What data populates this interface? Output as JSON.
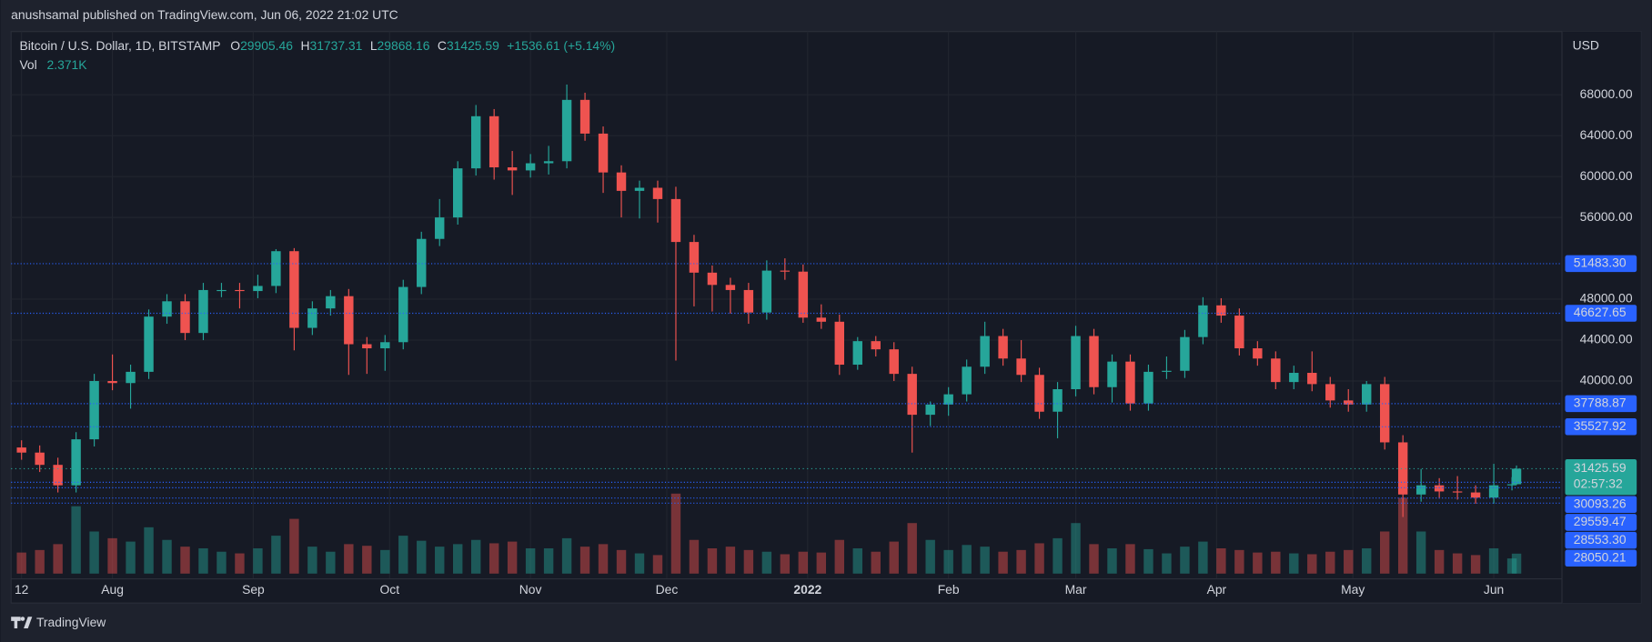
{
  "header": {
    "publisher": "anushsamal published on TradingView.com, Jun 06, 2022 21:02 UTC",
    "change": "+1536.61 (+5.14%)",
    "countdown": "02:57:32",
    "footer": "TradingView"
  },
  "chart_data": {
    "type": "candlestick",
    "title": "Bitcoin / U.S. Dollar, 1D, BITSTAMP",
    "currency": "USD",
    "ohlc_labels": [
      "O",
      "H",
      "L",
      "C"
    ],
    "volume_name": "Vol",
    "volume_label": "2.371K",
    "up_color": "#26a69a",
    "down_color": "#ef5350",
    "level_color": "#2962ff",
    "x": [
      0,
      4,
      8,
      12,
      16,
      20,
      24,
      28,
      32,
      36,
      40,
      44,
      48,
      52,
      56,
      60,
      64,
      68,
      72,
      76,
      80,
      84,
      88,
      92,
      96,
      100,
      104,
      108,
      112,
      116,
      120,
      124,
      128,
      132,
      136,
      140,
      144,
      148,
      152,
      156,
      160,
      164,
      168,
      172,
      176,
      180,
      184,
      188,
      192,
      196,
      200,
      204,
      208,
      212,
      216,
      220,
      224,
      228,
      232,
      236,
      240,
      244,
      248,
      252,
      256,
      260,
      264,
      268,
      272,
      276,
      280,
      284,
      288,
      292,
      296,
      300,
      304,
      308,
      312,
      316,
      320,
      324,
      328,
      329
    ],
    "open": [
      33500,
      33000,
      31800,
      29800,
      34300,
      40000,
      39800,
      40900,
      46300,
      47800,
      44700,
      48900,
      48900,
      48800,
      49300,
      52700,
      45200,
      47100,
      48300,
      43600,
      43200,
      43800,
      49200,
      53900,
      56000,
      60800,
      65900,
      60900,
      60600,
      61300,
      61500,
      67500,
      64200,
      60400,
      58600,
      58900,
      57800,
      53600,
      50600,
      49400,
      48900,
      46700,
      50800,
      50700,
      46200,
      45800,
      41600,
      43900,
      43100,
      40700,
      36700,
      37700,
      38700,
      41400,
      44400,
      42200,
      40600,
      37000,
      39200,
      44400,
      39400,
      41900,
      37800,
      40900,
      41000,
      44300,
      47400,
      46400,
      43200,
      42200,
      39900,
      40800,
      39700,
      38100,
      37700,
      39700,
      34000,
      28900,
      29800,
      29200,
      29100,
      28600,
      29800,
      29905.46
    ],
    "high": [
      34200,
      33700,
      32500,
      35000,
      40700,
      42600,
      41600,
      47000,
      48500,
      48500,
      49600,
      49600,
      49600,
      50400,
      52900,
      53000,
      47800,
      48900,
      49000,
      44300,
      44500,
      49900,
      54600,
      57800,
      61500,
      67000,
      66600,
      62500,
      62200,
      63000,
      69000,
      68200,
      64900,
      61100,
      59600,
      59600,
      59000,
      54300,
      51300,
      50100,
      49600,
      51800,
      52000,
      51400,
      47500,
      46500,
      44300,
      44400,
      43800,
      41400,
      38000,
      39400,
      42100,
      45800,
      45100,
      44000,
      41300,
      39900,
      45400,
      45100,
      42600,
      42600,
      41600,
      42400,
      45000,
      48200,
      48100,
      47100,
      43900,
      42900,
      41500,
      42900,
      40400,
      39200,
      40000,
      40400,
      34700,
      31400,
      30500,
      30700,
      29800,
      31900,
      30600,
      31737.31
    ],
    "low": [
      32300,
      31100,
      29100,
      29100,
      33600,
      39100,
      37300,
      40200,
      45600,
      44000,
      44000,
      48200,
      47100,
      48100,
      48600,
      43000,
      44500,
      46400,
      40600,
      40700,
      41000,
      43100,
      48500,
      53200,
      55300,
      60100,
      59700,
      58200,
      59900,
      60200,
      60800,
      63500,
      58400,
      56000,
      55900,
      55500,
      42000,
      47300,
      46800,
      46600,
      45600,
      46000,
      49900,
      45700,
      45100,
      40600,
      41100,
      42400,
      40000,
      33000,
      35600,
      36600,
      38000,
      40700,
      41500,
      39900,
      36300,
      34400,
      38500,
      38700,
      37900,
      37100,
      37100,
      40200,
      40300,
      43600,
      45700,
      42500,
      41500,
      39200,
      39200,
      39000,
      37400,
      37000,
      37000,
      33300,
      26700,
      28200,
      28500,
      28400,
      28000,
      28000,
      29300,
      29868.16
    ],
    "close": [
      33000,
      31800,
      29800,
      34300,
      40000,
      39800,
      40900,
      46300,
      47800,
      44700,
      48900,
      48900,
      48800,
      49300,
      52700,
      45200,
      47100,
      48300,
      43600,
      43200,
      43800,
      49200,
      53900,
      56000,
      60800,
      65900,
      60900,
      60600,
      61300,
      61500,
      67500,
      64200,
      60400,
      58600,
      58900,
      57800,
      53600,
      50600,
      49400,
      48900,
      46700,
      50800,
      50700,
      46200,
      45800,
      41600,
      43900,
      43100,
      40700,
      36700,
      37700,
      38700,
      41400,
      44400,
      42200,
      40600,
      37000,
      39200,
      44400,
      39400,
      41900,
      37800,
      40900,
      41000,
      44300,
      47400,
      46400,
      43200,
      42200,
      39900,
      40800,
      39700,
      38100,
      37700,
      39700,
      34000,
      28900,
      29800,
      29200,
      29100,
      28600,
      29800,
      29900,
      31425.59
    ],
    "volume": [
      2.5,
      2.8,
      3.5,
      8.0,
      5.0,
      4.2,
      3.8,
      5.5,
      4.0,
      3.2,
      3.0,
      2.6,
      2.4,
      3.0,
      4.5,
      6.5,
      3.2,
      2.6,
      3.5,
      3.3,
      2.8,
      4.5,
      3.9,
      3.2,
      3.5,
      4.0,
      3.6,
      3.8,
      3.0,
      3.0,
      4.2,
      3.2,
      3.5,
      2.8,
      2.4,
      2.2,
      9.5,
      4.0,
      3.0,
      3.2,
      2.8,
      2.6,
      2.3,
      2.6,
      2.5,
      4.0,
      3.0,
      2.6,
      3.8,
      6.0,
      4.0,
      2.8,
      3.4,
      3.2,
      2.6,
      2.8,
      3.6,
      4.2,
      6.0,
      3.5,
      3.0,
      3.5,
      2.9,
      2.4,
      3.2,
      3.8,
      3.0,
      2.8,
      2.5,
      2.6,
      2.4,
      2.3,
      2.6,
      2.8,
      3.0,
      5.0,
      9.0,
      5.0,
      2.8,
      2.4,
      2.2,
      3.0,
      1.8,
      2.371
    ],
    "volume_lim": [
      0,
      10
    ],
    "xlim": [
      -2.3,
      339
    ],
    "xticks": [
      {
        "value": 0,
        "label": "12"
      },
      {
        "value": 20,
        "label": "Aug"
      },
      {
        "value": 51,
        "label": "Sep"
      },
      {
        "value": 81,
        "label": "Oct"
      },
      {
        "value": 112,
        "label": "Nov"
      },
      {
        "value": 142,
        "label": "Dec"
      },
      {
        "value": 173,
        "label": "2022"
      },
      {
        "value": 204,
        "label": "Feb"
      },
      {
        "value": 232,
        "label": "Mar"
      },
      {
        "value": 263,
        "label": "Apr"
      },
      {
        "value": 293,
        "label": "May"
      },
      {
        "value": 324,
        "label": "Jun"
      }
    ],
    "ylim": [
      20650,
      74180
    ],
    "yticks": [
      {
        "value": 40000,
        "label": "40000.00"
      },
      {
        "value": 44000,
        "label": "44000.00"
      },
      {
        "value": 48000,
        "label": "48000.00"
      },
      {
        "value": 56000,
        "label": "56000.00"
      },
      {
        "value": 60000,
        "label": "60000.00"
      },
      {
        "value": 64000,
        "label": "64000.00"
      },
      {
        "value": 68000,
        "label": "68000.00"
      }
    ],
    "levels": [
      {
        "value": 51483.3,
        "label": "51483.30"
      },
      {
        "value": 46627.65,
        "label": "46627.65"
      },
      {
        "value": 37788.87,
        "label": "37788.87"
      },
      {
        "value": 35527.92,
        "label": "35527.92"
      },
      {
        "value": 30093.26,
        "label": "30093.26"
      },
      {
        "value": 29559.47,
        "label": "29559.47"
      },
      {
        "value": 28553.3,
        "label": "28553.30"
      },
      {
        "value": 28050.21,
        "label": "28050.21"
      }
    ],
    "grid": true
  }
}
